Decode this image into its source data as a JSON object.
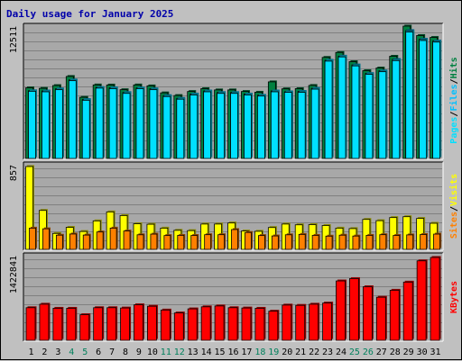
{
  "title": "Daily usage for January 2025",
  "colors": {
    "hits": "#008040",
    "files": "#00c0ff",
    "pages": "#00e0ff",
    "visits": "#ffff00",
    "sites": "#ff8000",
    "kbytes": "#ff0000",
    "weekend_label": "#00805c",
    "weekday_label": "#000000",
    "plot_bg": "#a8a8a8",
    "page_bg": "#c0c0c0"
  },
  "chart_data": [
    {
      "type": "bar",
      "panel": "hits-files-pages",
      "max_label": "12511",
      "ylim": [
        0,
        12511
      ],
      "legend": [
        "Pages",
        "/",
        "Files",
        "/",
        "Hits"
      ],
      "categories": [
        "1",
        "2",
        "3",
        "4",
        "5",
        "6",
        "7",
        "8",
        "9",
        "10",
        "11",
        "12",
        "13",
        "14",
        "15",
        "16",
        "17",
        "18",
        "19",
        "20",
        "21",
        "22",
        "23",
        "24",
        "25",
        "26",
        "27",
        "28",
        "29",
        "30",
        "31"
      ],
      "weekend_days": [
        "4",
        "5",
        "11",
        "12",
        "18",
        "19",
        "25",
        "26"
      ],
      "series": [
        {
          "name": "Hits",
          "values": [
            6680,
            6630,
            6890,
            7750,
            5780,
            6950,
            6940,
            6500,
            6950,
            6860,
            6200,
            5950,
            6330,
            6600,
            6480,
            6480,
            6330,
            6260,
            7240,
            6580,
            6600,
            6900,
            9550,
            10020,
            9150,
            8300,
            8550,
            9660,
            12511,
            11620,
            11440
          ]
        },
        {
          "name": "Files",
          "values": [
            6400,
            6380,
            6580,
            7420,
            5570,
            6710,
            6680,
            6230,
            6660,
            6580,
            5940,
            5680,
            6090,
            6380,
            6230,
            6230,
            6080,
            5970,
            6380,
            6300,
            6340,
            6630,
            9280,
            9670,
            8840,
            8030,
            8280,
            9360,
            12090,
            11270,
            11100
          ]
        },
        {
          "name": "Pages",
          "values": [
            6350,
            6300,
            6500,
            7350,
            5500,
            6650,
            6600,
            6150,
            6600,
            6500,
            5850,
            5600,
            6000,
            6300,
            6150,
            6150,
            6000,
            5900,
            6300,
            6250,
            6250,
            6550,
            9200,
            9600,
            8750,
            7950,
            8200,
            9250,
            11950,
            11150,
            11000
          ]
        }
      ]
    },
    {
      "type": "bar",
      "panel": "visits-sites",
      "max_label": "857",
      "ylim": [
        0,
        857
      ],
      "legend": [
        "Sites",
        "/",
        "Visits"
      ],
      "series": [
        {
          "name": "Visits",
          "values": [
            857,
            403,
            165,
            228,
            185,
            295,
            388,
            350,
            265,
            260,
            220,
            197,
            194,
            262,
            262,
            273,
            190,
            187,
            226,
            262,
            254,
            256,
            247,
            220,
            215,
            310,
            297,
            329,
            338,
            320,
            270
          ]
        },
        {
          "name": "Sites",
          "values": [
            220,
            213,
            147,
            159,
            148,
            180,
            220,
            190,
            151,
            158,
            143,
            145,
            144,
            152,
            152,
            205,
            175,
            143,
            139,
            151,
            155,
            145,
            137,
            147,
            138,
            145,
            152,
            144,
            150,
            154,
            158
          ]
        }
      ]
    },
    {
      "type": "bar",
      "panel": "kbytes",
      "max_label": "1422841",
      "ylim": [
        0,
        1422841
      ],
      "legend": [
        "KBytes"
      ],
      "series": [
        {
          "name": "KBytes",
          "values": [
            560000,
            620000,
            550000,
            550000,
            440000,
            560000,
            560000,
            555000,
            610000,
            585000,
            520000,
            470000,
            540000,
            575000,
            590000,
            560000,
            555000,
            550000,
            500000,
            605000,
            600000,
            620000,
            640000,
            1020000,
            1060000,
            920000,
            740000,
            860000,
            1000000,
            1365000,
            1422841
          ]
        }
      ]
    }
  ]
}
